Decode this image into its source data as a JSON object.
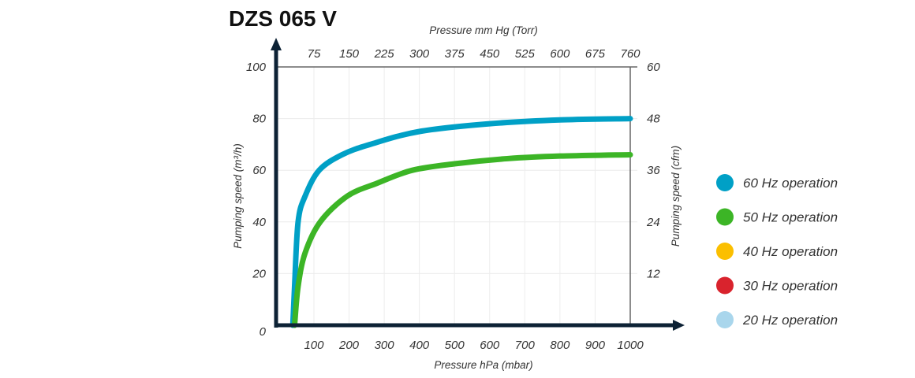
{
  "chart_data": {
    "type": "line",
    "title": "DZS 065 V",
    "xlabel": "Pressure hPa (mbar)",
    "x2label": "Pressure mm Hg (Torr)",
    "ylabel": "Pumping speed (m³/h)",
    "y2label": "Pumping speed (cfm)",
    "xlim": [
      0,
      1000
    ],
    "ylim": [
      0,
      100
    ],
    "x_ticks": [
      "100",
      "200",
      "300",
      "400",
      "500",
      "600",
      "700",
      "800",
      "900",
      "1000"
    ],
    "x2_ticks": [
      "75",
      "150",
      "225",
      "300",
      "375",
      "450",
      "525",
      "600",
      "675",
      "760"
    ],
    "y_ticks": [
      "0",
      "20",
      "40",
      "60",
      "80",
      "100"
    ],
    "y2_ticks": [
      "12",
      "24",
      "36",
      "48",
      "60"
    ],
    "grid": true,
    "legend_position": "right",
    "series": [
      {
        "name": "60 Hz operation",
        "color": "#00a0c6",
        "points": [
          [
            40,
            0
          ],
          [
            45,
            15
          ],
          [
            55,
            40
          ],
          [
            75,
            50
          ],
          [
            115,
            60
          ],
          [
            180,
            66
          ],
          [
            260,
            70
          ],
          [
            400,
            75
          ],
          [
            600,
            78
          ],
          [
            800,
            79.5
          ],
          [
            1000,
            80
          ]
        ]
      },
      {
        "name": "50 Hz operation",
        "color": "#3cb526",
        "points": [
          [
            45,
            0
          ],
          [
            55,
            15
          ],
          [
            75,
            28
          ],
          [
            118,
            40
          ],
          [
            195,
            50
          ],
          [
            280,
            55
          ],
          [
            380,
            60
          ],
          [
            500,
            62.5
          ],
          [
            650,
            64.5
          ],
          [
            800,
            65.5
          ],
          [
            1000,
            66
          ]
        ]
      },
      {
        "name": "40 Hz operation",
        "color": "#fbbf00",
        "points": []
      },
      {
        "name": "30 Hz operation",
        "color": "#d9232d",
        "points": []
      },
      {
        "name": "20 Hz operation",
        "color": "#a9d6ec",
        "points": []
      }
    ]
  }
}
